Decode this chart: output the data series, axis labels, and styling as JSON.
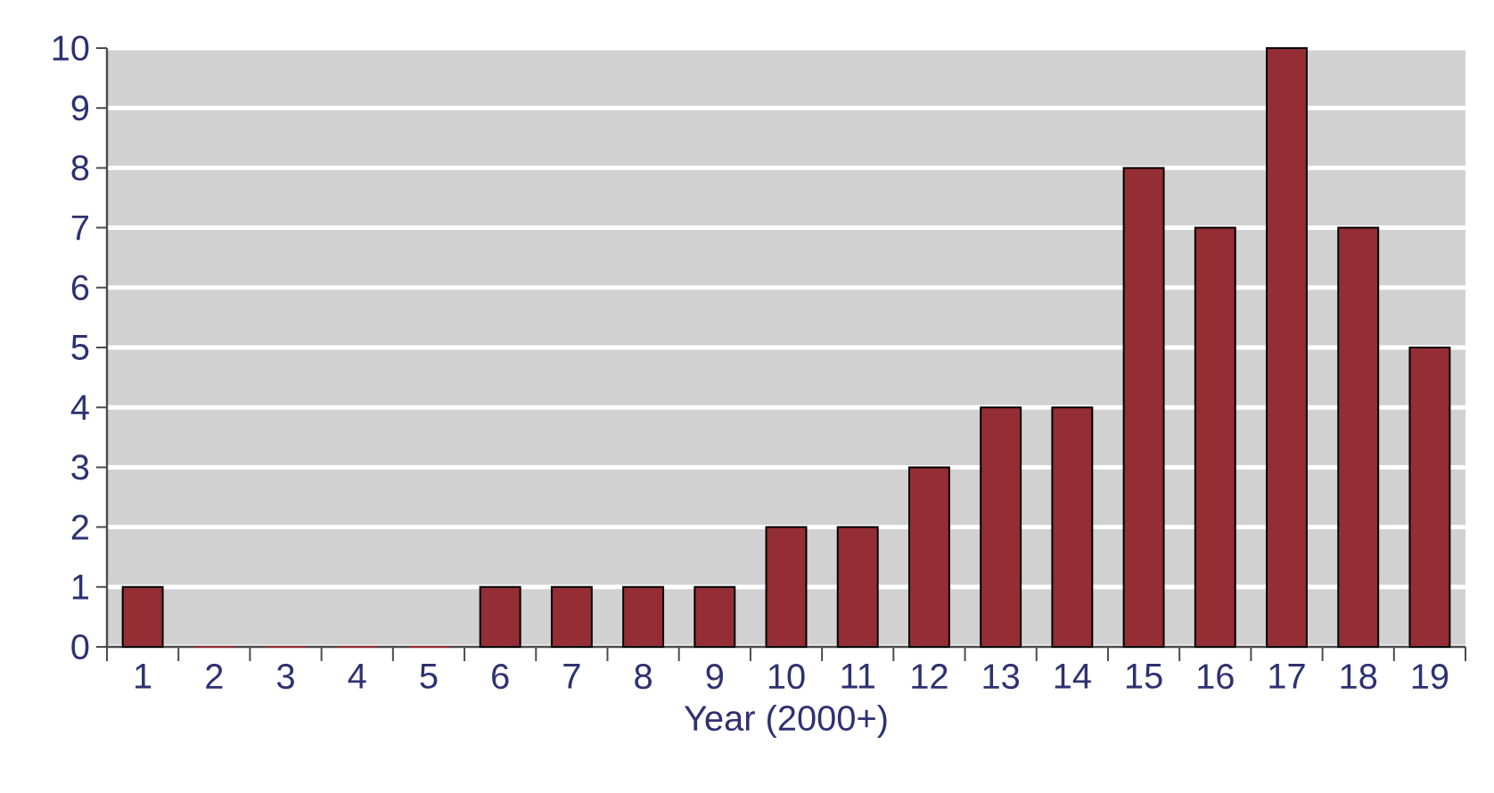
{
  "chart_data": {
    "type": "bar",
    "xlabel": "Year (2000+)",
    "categories": [
      "1",
      "2",
      "3",
      "4",
      "5",
      "6",
      "7",
      "8",
      "9",
      "10",
      "11",
      "12",
      "13",
      "14",
      "15",
      "16",
      "17",
      "18",
      "19"
    ],
    "values": [
      1,
      0,
      0,
      0,
      0,
      1,
      1,
      1,
      1,
      2,
      2,
      3,
      4,
      4,
      8,
      7,
      10,
      7,
      5
    ],
    "color": "#952d35",
    "ylim": [
      0,
      10
    ],
    "yticks": [
      0,
      1,
      2,
      3,
      4,
      5,
      6,
      7,
      8,
      9,
      10
    ],
    "grid": "y"
  }
}
